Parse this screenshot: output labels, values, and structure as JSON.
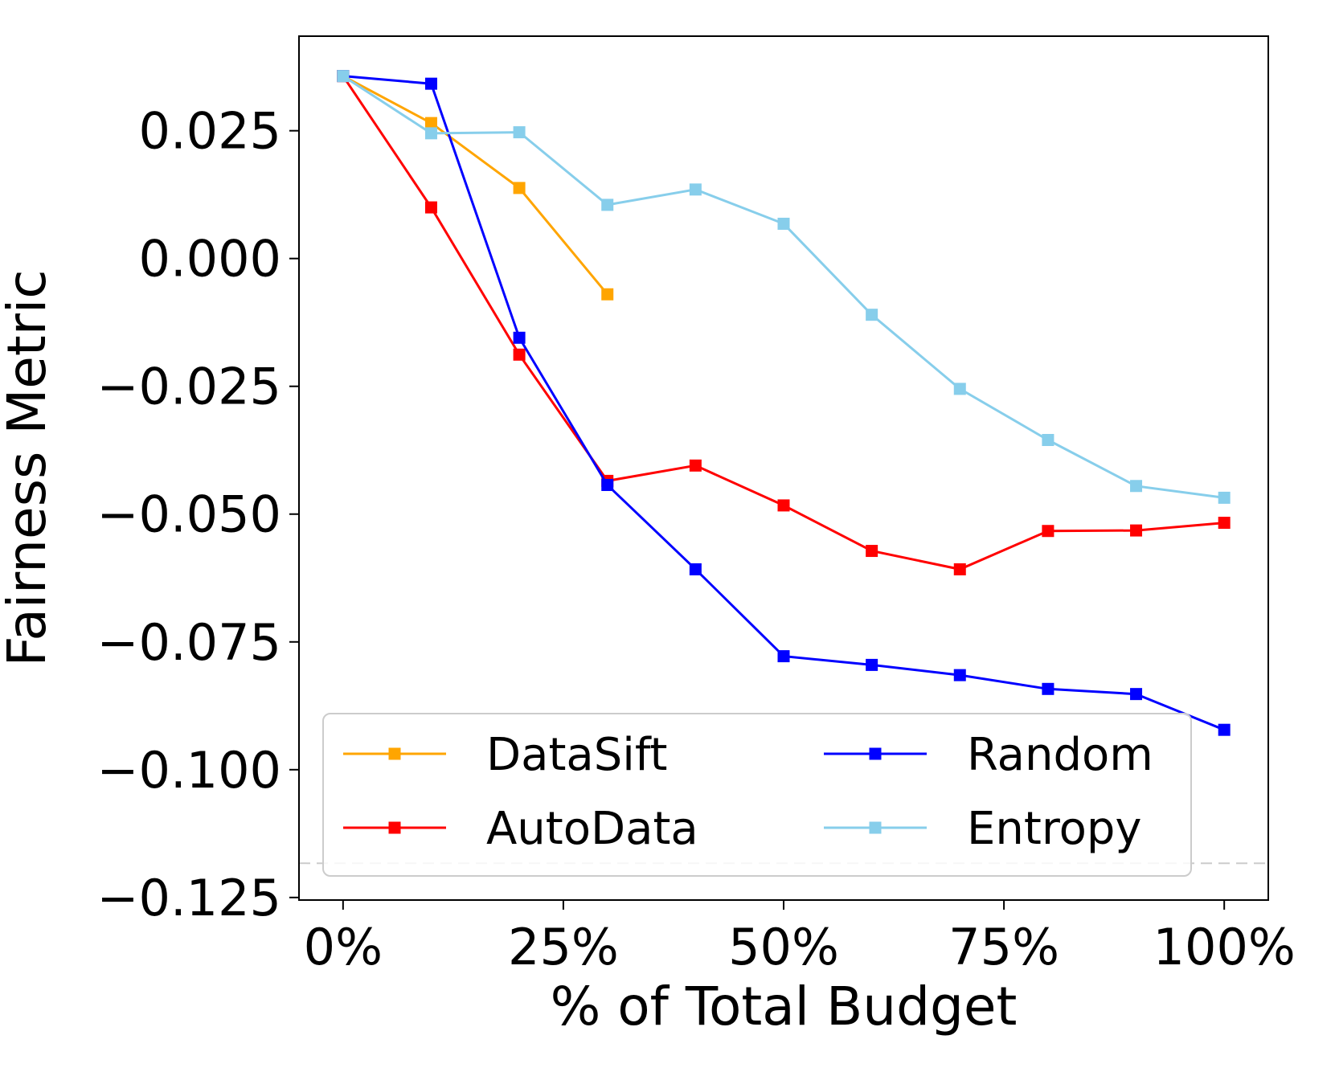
{
  "chart_data": {
    "type": "line",
    "title": "",
    "xlabel": "% of Total Budget",
    "ylabel": "Fairness Metric",
    "xlim": [
      -5,
      105
    ],
    "ylim": [
      -0.1255,
      0.0435
    ],
    "x": [
      0,
      10,
      20,
      30,
      40,
      50,
      60,
      70,
      80,
      90,
      100
    ],
    "xticks": [
      0,
      25,
      50,
      75,
      100
    ],
    "xtick_labels": [
      "0%",
      "25%",
      "50%",
      "75%",
      "100%"
    ],
    "yticks": [
      0.025,
      0.0,
      -0.025,
      -0.05,
      -0.075,
      -0.1,
      -0.125
    ],
    "ytick_labels": [
      "0.025",
      "0.000",
      "−0.025",
      "−0.050",
      "−0.075",
      "−0.100",
      "−0.125"
    ],
    "reference_line": {
      "y": -0.1183,
      "style": "dashed",
      "color": "#cccccc"
    },
    "legend_location": "lower-center",
    "series": [
      {
        "name": "DataSift",
        "color": "#FFA500",
        "x": [
          0,
          10,
          20,
          30
        ],
        "values": [
          0.0357,
          0.0265,
          0.0138,
          -0.007
        ]
      },
      {
        "name": "AutoData",
        "color": "#FF0000",
        "x": [
          0,
          10,
          20,
          30,
          40,
          50,
          60,
          70,
          80,
          90,
          100
        ],
        "values": [
          0.0357,
          0.01,
          -0.0188,
          -0.0435,
          -0.0405,
          -0.0483,
          -0.0572,
          -0.0608,
          -0.0533,
          -0.0532,
          -0.0517
        ]
      },
      {
        "name": "Random",
        "color": "#0000FF",
        "x": [
          0,
          10,
          20,
          30,
          40,
          50,
          60,
          70,
          80,
          90,
          100
        ],
        "values": [
          0.0357,
          0.0342,
          -0.0155,
          -0.0443,
          -0.0608,
          -0.0778,
          -0.0795,
          -0.0815,
          -0.0842,
          -0.0852,
          -0.0922
        ]
      },
      {
        "name": "Entropy",
        "color": "#87CEEB",
        "x": [
          0,
          10,
          20,
          30,
          40,
          50,
          60,
          70,
          80,
          90,
          100
        ],
        "values": [
          0.0357,
          0.0245,
          0.0247,
          0.0105,
          0.0135,
          0.0068,
          -0.011,
          -0.0255,
          -0.0355,
          -0.0445,
          -0.0468
        ]
      }
    ],
    "legend_layout": [
      [
        "DataSift",
        "Random"
      ],
      [
        "AutoData",
        "Entropy"
      ]
    ]
  }
}
